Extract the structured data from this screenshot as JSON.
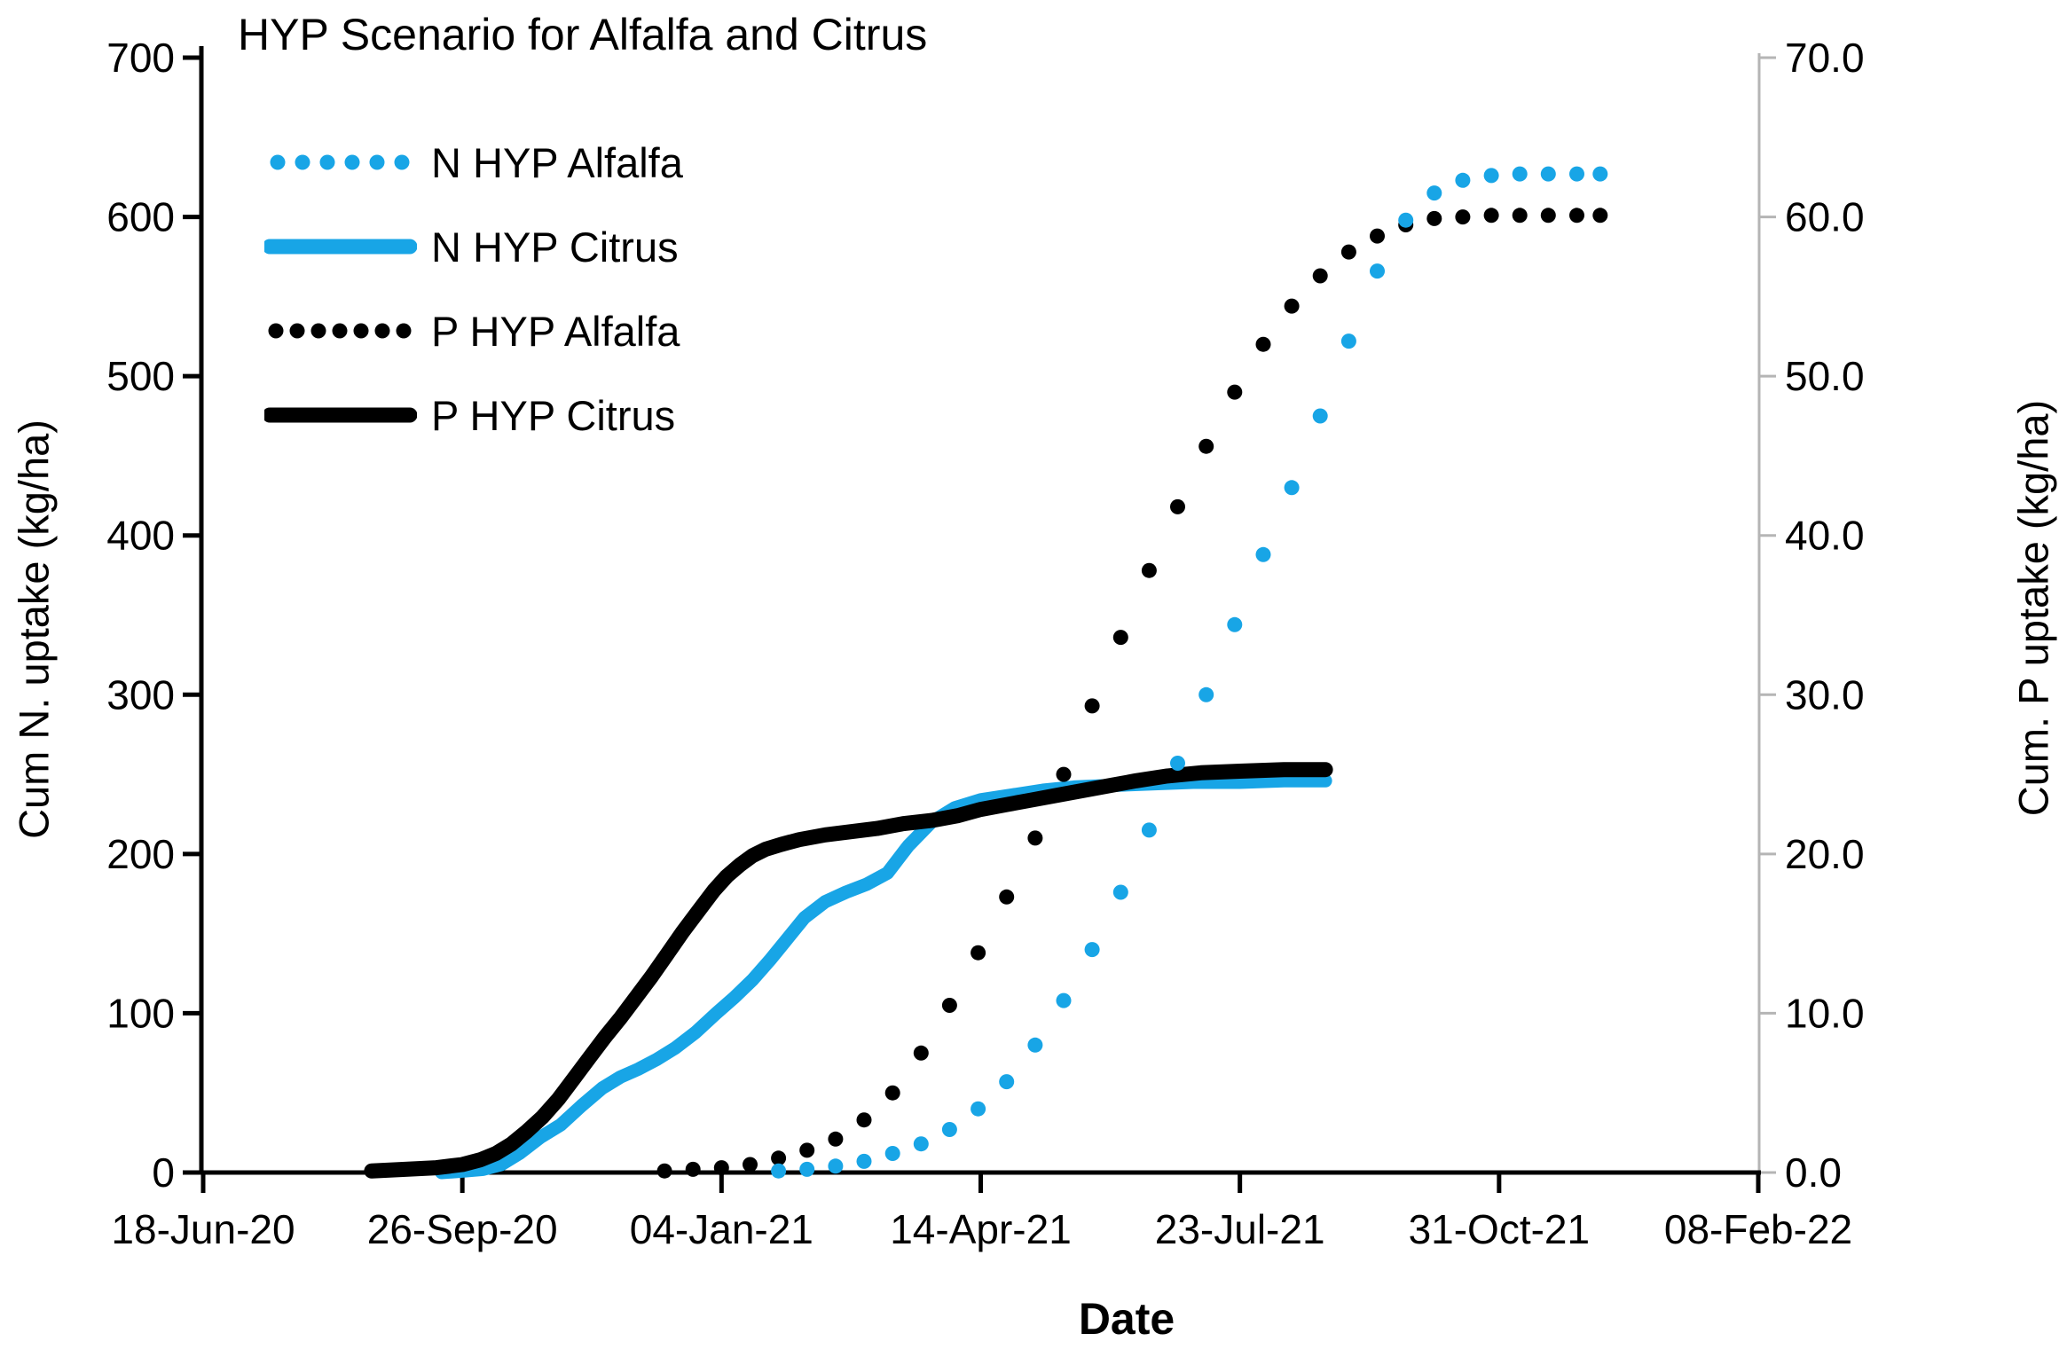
{
  "title": "HYP Scenario for Alfalfa and Citrus",
  "colors": {
    "series_blue": "#18a5e6",
    "series_black": "#000000",
    "right_axis_line": "#b5b5b5",
    "text": "#000000"
  },
  "chart_data": {
    "type": "line",
    "title": "HYP Scenario for Alfalfa and Citrus",
    "x_axis": {
      "title": "Date",
      "unit": "days since 18-Jun-20",
      "min": 0,
      "max": 600,
      "tick_days": [
        0,
        100,
        200,
        300,
        400,
        500,
        600
      ],
      "tick_labels": [
        "18-Jun-20",
        "26-Sep-20",
        "04-Jan-21",
        "14-Apr-21",
        "23-Jul-21",
        "31-Oct-21",
        "08-Feb-22"
      ]
    },
    "y_axis_left": {
      "title": "Cum N. uptake (kg/ha)",
      "min": 0,
      "max": 700,
      "tick_step": 100,
      "tick_labels": [
        "0",
        "100",
        "200",
        "300",
        "400",
        "500",
        "600",
        "700"
      ]
    },
    "y_axis_right": {
      "title": "Cum. P uptake (kg/ha)",
      "min": 0,
      "max": 70,
      "tick_step": 10,
      "tick_labels": [
        "0.0",
        "10.0",
        "20.0",
        "30.0",
        "40.0",
        "50.0",
        "60.0",
        "70.0"
      ]
    },
    "legend_position": "top-left-inside",
    "grid": false,
    "series": [
      {
        "name": "N HYP Alfalfa",
        "style": "dotted",
        "color": "#18a5e6",
        "axis": "left",
        "data": [
          [
            222,
            1
          ],
          [
            233,
            2
          ],
          [
            244,
            4
          ],
          [
            255,
            7
          ],
          [
            266,
            12
          ],
          [
            277,
            18
          ],
          [
            288,
            27
          ],
          [
            299,
            40
          ],
          [
            310,
            57
          ],
          [
            321,
            80
          ],
          [
            332,
            108
          ],
          [
            343,
            140
          ],
          [
            354,
            176
          ],
          [
            365,
            215
          ],
          [
            376,
            257
          ],
          [
            387,
            300
          ],
          [
            398,
            344
          ],
          [
            409,
            388
          ],
          [
            420,
            430
          ],
          [
            431,
            475
          ],
          [
            442,
            522
          ],
          [
            453,
            566
          ],
          [
            464,
            598
          ],
          [
            475,
            615
          ],
          [
            486,
            623
          ],
          [
            497,
            626
          ],
          [
            508,
            627
          ],
          [
            519,
            627
          ],
          [
            530,
            627
          ],
          [
            539,
            627
          ]
        ]
      },
      {
        "name": "N HYP Citrus",
        "style": "solid",
        "color": "#18a5e6",
        "axis": "left",
        "data": [
          [
            92,
            0
          ],
          [
            101,
            1
          ],
          [
            108,
            2
          ],
          [
            115,
            5
          ],
          [
            122,
            12
          ],
          [
            130,
            22
          ],
          [
            138,
            30
          ],
          [
            146,
            42
          ],
          [
            154,
            53
          ],
          [
            161,
            60
          ],
          [
            168,
            65
          ],
          [
            175,
            71
          ],
          [
            182,
            78
          ],
          [
            190,
            88
          ],
          [
            198,
            100
          ],
          [
            205,
            110
          ],
          [
            212,
            121
          ],
          [
            219,
            134
          ],
          [
            226,
            148
          ],
          [
            232,
            160
          ],
          [
            240,
            170
          ],
          [
            248,
            176
          ],
          [
            256,
            181
          ],
          [
            264,
            188
          ],
          [
            272,
            205
          ],
          [
            281,
            220
          ],
          [
            290,
            229
          ],
          [
            300,
            234
          ],
          [
            312,
            237
          ],
          [
            324,
            240
          ],
          [
            336,
            242
          ],
          [
            350,
            243
          ],
          [
            366,
            244
          ],
          [
            382,
            245
          ],
          [
            400,
            245
          ],
          [
            417,
            246
          ],
          [
            433,
            246
          ]
        ]
      },
      {
        "name": "P HYP Alfalfa",
        "style": "dotted",
        "color": "#000000",
        "axis": "right",
        "data": [
          [
            178,
            0.1
          ],
          [
            189,
            0.2
          ],
          [
            200,
            0.3
          ],
          [
            211,
            0.5
          ],
          [
            222,
            0.9
          ],
          [
            233,
            1.4
          ],
          [
            244,
            2.1
          ],
          [
            255,
            3.3
          ],
          [
            266,
            5.0
          ],
          [
            277,
            7.5
          ],
          [
            288,
            10.5
          ],
          [
            299,
            13.8
          ],
          [
            310,
            17.3
          ],
          [
            321,
            21.0
          ],
          [
            332,
            25.0
          ],
          [
            343,
            29.3
          ],
          [
            354,
            33.6
          ],
          [
            365,
            37.8
          ],
          [
            376,
            41.8
          ],
          [
            387,
            45.6
          ],
          [
            398,
            49.0
          ],
          [
            409,
            52.0
          ],
          [
            420,
            54.4
          ],
          [
            431,
            56.3
          ],
          [
            442,
            57.8
          ],
          [
            453,
            58.8
          ],
          [
            464,
            59.5
          ],
          [
            475,
            59.9
          ],
          [
            486,
            60.0
          ],
          [
            497,
            60.1
          ],
          [
            508,
            60.1
          ],
          [
            519,
            60.1
          ],
          [
            530,
            60.1
          ],
          [
            539,
            60.1
          ]
        ]
      },
      {
        "name": "P HYP Citrus",
        "style": "solid",
        "color": "#000000",
        "axis": "right",
        "data": [
          [
            65,
            0.1
          ],
          [
            78,
            0.2
          ],
          [
            90,
            0.3
          ],
          [
            100,
            0.5
          ],
          [
            107,
            0.8
          ],
          [
            113,
            1.2
          ],
          [
            119,
            1.8
          ],
          [
            125,
            2.6
          ],
          [
            131,
            3.5
          ],
          [
            137,
            4.6
          ],
          [
            143,
            5.9
          ],
          [
            149,
            7.2
          ],
          [
            155,
            8.5
          ],
          [
            161,
            9.7
          ],
          [
            167,
            11.0
          ],
          [
            173,
            12.3
          ],
          [
            179,
            13.7
          ],
          [
            185,
            15.1
          ],
          [
            191,
            16.4
          ],
          [
            197,
            17.7
          ],
          [
            202,
            18.6
          ],
          [
            207,
            19.3
          ],
          [
            212,
            19.9
          ],
          [
            217,
            20.3
          ],
          [
            223,
            20.6
          ],
          [
            230,
            20.9
          ],
          [
            240,
            21.2
          ],
          [
            250,
            21.4
          ],
          [
            260,
            21.6
          ],
          [
            270,
            21.9
          ],
          [
            281,
            22.1
          ],
          [
            291,
            22.4
          ],
          [
            300,
            22.8
          ],
          [
            310,
            23.1
          ],
          [
            320,
            23.4
          ],
          [
            330,
            23.7
          ],
          [
            340,
            24.0
          ],
          [
            350,
            24.3
          ],
          [
            360,
            24.6
          ],
          [
            372,
            24.9
          ],
          [
            385,
            25.1
          ],
          [
            400,
            25.2
          ],
          [
            417,
            25.3
          ],
          [
            433,
            25.3
          ]
        ]
      }
    ]
  }
}
